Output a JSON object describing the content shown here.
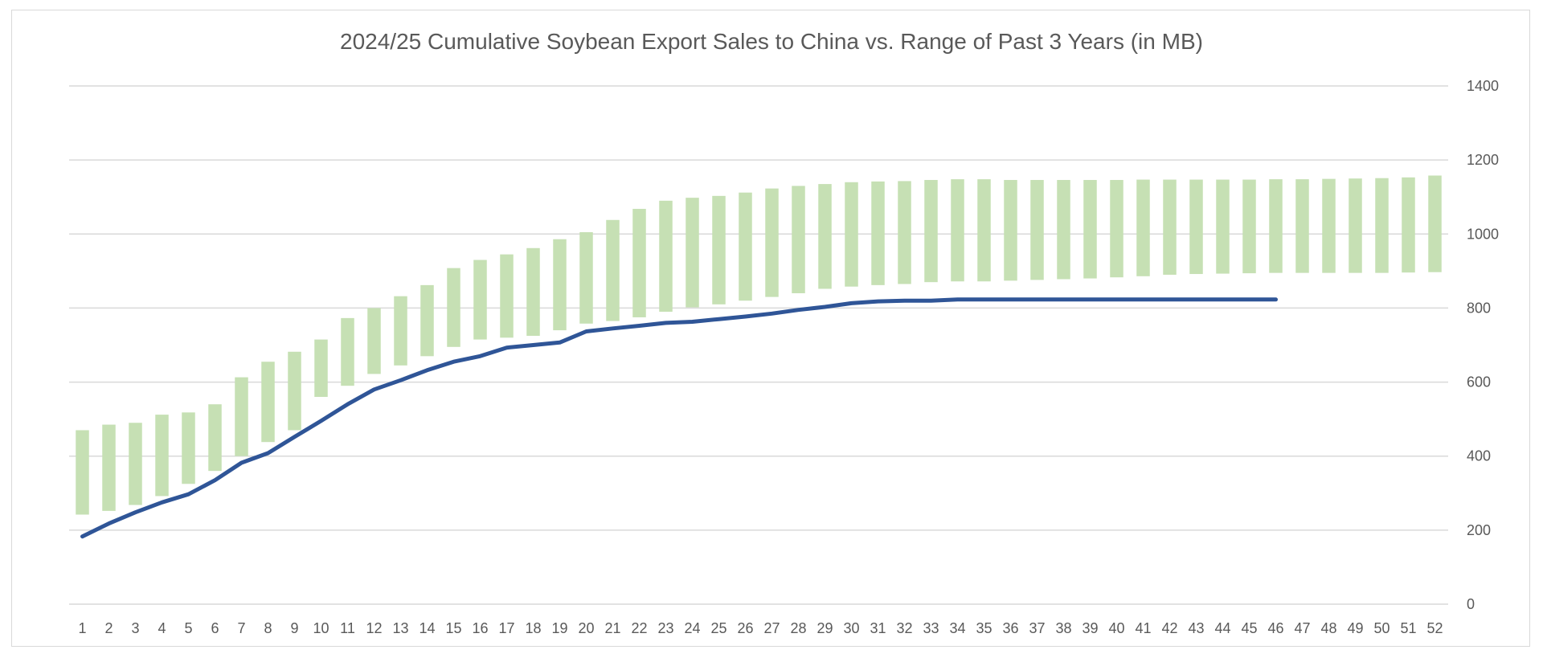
{
  "chart_data": {
    "type": "bar",
    "title": "2024/25 Cumulative Soybean Export Sales to China vs. Range of Past 3 Years (in MB)",
    "xlabel": "",
    "ylabel": "",
    "ylim": [
      0,
      1400
    ],
    "yticks": [
      "0",
      "200",
      "400",
      "600",
      "800",
      "1000",
      "1200",
      "1400"
    ],
    "y_axis_side": "right",
    "grid": true,
    "legend": "none",
    "categories": [
      "1",
      "2",
      "3",
      "4",
      "5",
      "6",
      "7",
      "8",
      "9",
      "10",
      "11",
      "12",
      "13",
      "14",
      "15",
      "16",
      "17",
      "18",
      "19",
      "20",
      "21",
      "22",
      "23",
      "24",
      "25",
      "26",
      "27",
      "28",
      "29",
      "30",
      "31",
      "32",
      "33",
      "34",
      "35",
      "36",
      "37",
      "38",
      "39",
      "40",
      "41",
      "42",
      "43",
      "44",
      "45",
      "46",
      "47",
      "48",
      "49",
      "50",
      "51",
      "52"
    ],
    "series": [
      {
        "type": "range-bar",
        "color": "#c6e0b4",
        "low": [
          242,
          252,
          268,
          292,
          325,
          360,
          400,
          438,
          470,
          560,
          590,
          622,
          645,
          670,
          695,
          715,
          720,
          725,
          740,
          758,
          765,
          775,
          790,
          802,
          810,
          820,
          830,
          840,
          852,
          858,
          862,
          865,
          870,
          872,
          872,
          874,
          876,
          878,
          880,
          883,
          886,
          890,
          892,
          893,
          894,
          895,
          895,
          895,
          895,
          895,
          896,
          897
        ],
        "high": [
          470,
          485,
          490,
          512,
          518,
          540,
          613,
          655,
          682,
          715,
          773,
          800,
          832,
          862,
          908,
          930,
          945,
          962,
          986,
          1005,
          1038,
          1068,
          1090,
          1098,
          1103,
          1112,
          1123,
          1130,
          1135,
          1140,
          1142,
          1143,
          1146,
          1148,
          1148,
          1146,
          1146,
          1146,
          1146,
          1146,
          1147,
          1147,
          1147,
          1147,
          1147,
          1148,
          1148,
          1149,
          1150,
          1151,
          1153,
          1158
        ]
      },
      {
        "type": "line",
        "color": "#2f5597",
        "values": [
          183,
          218,
          248,
          275,
          297,
          335,
          382,
          408,
          452,
          495,
          540,
          580,
          605,
          632,
          655,
          670,
          693,
          700,
          707,
          737,
          745,
          752,
          760,
          763,
          770,
          777,
          785,
          795,
          803,
          813,
          818,
          820,
          820,
          823,
          823,
          823,
          823,
          823,
          823,
          823,
          823,
          823,
          823,
          823,
          823,
          823,
          null,
          null,
          null,
          null,
          null,
          null
        ]
      }
    ]
  }
}
